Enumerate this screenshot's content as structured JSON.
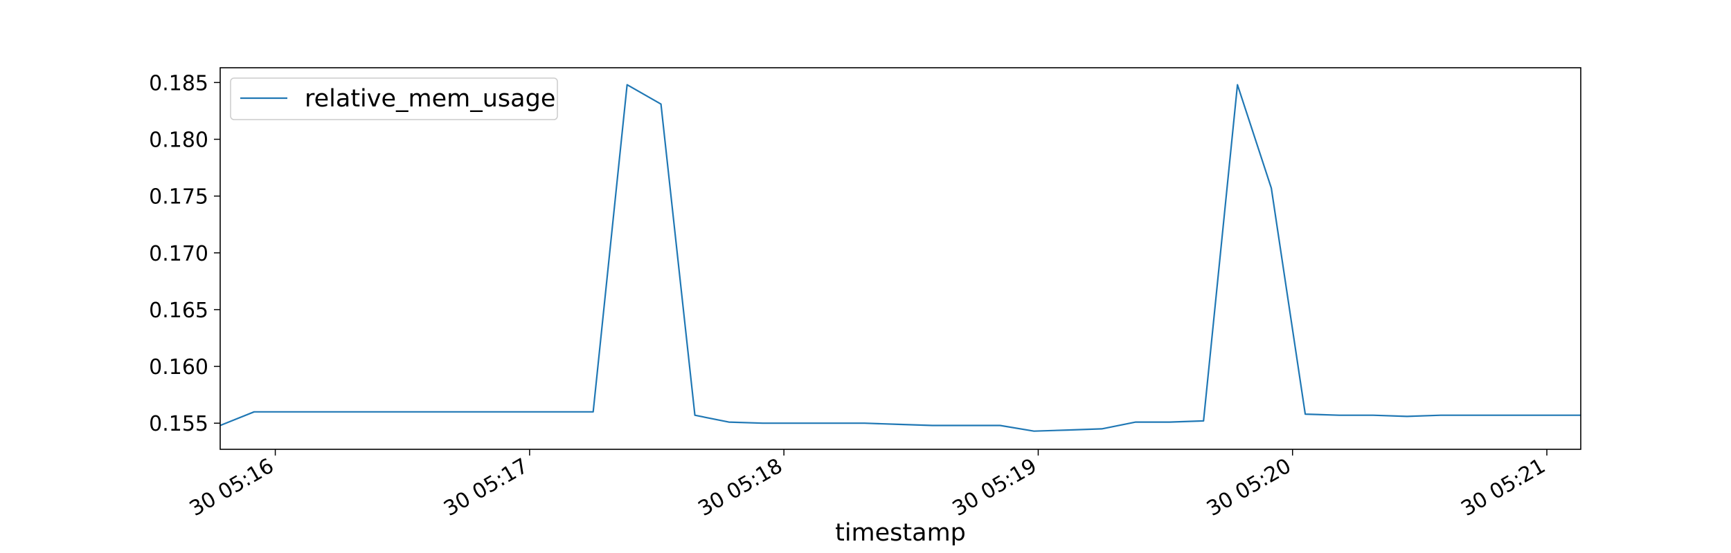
{
  "chart_data": {
    "type": "line",
    "xlabel": "timestamp",
    "ylabel": "",
    "x_tick_labels": [
      "30 05:16",
      "30 05:17",
      "30 05:18",
      "30 05:19",
      "30 05:20",
      "30 05:21"
    ],
    "y_tick_labels": [
      "0.155",
      "0.160",
      "0.165",
      "0.170",
      "0.175",
      "0.180",
      "0.185"
    ],
    "y_ticks": [
      0.155,
      0.16,
      0.165,
      0.17,
      0.175,
      0.18,
      0.185
    ],
    "xlim": [
      "05:15:47",
      "05:21:08"
    ],
    "ylim": [
      0.1527,
      0.1863
    ],
    "grid": false,
    "legend_position": "upper-left",
    "series": [
      {
        "name": "relative_mem_usage",
        "color": "#1f77b4",
        "x": [
          "05:15:47",
          "05:15:55",
          "05:16:03",
          "05:16:11",
          "05:16:19",
          "05:16:27",
          "05:16:35",
          "05:16:43",
          "05:16:51",
          "05:16:59",
          "05:17:07",
          "05:17:15",
          "05:17:23",
          "05:17:31",
          "05:17:39",
          "05:17:47",
          "05:17:55",
          "05:18:03",
          "05:18:11",
          "05:18:19",
          "05:18:27",
          "05:18:35",
          "05:18:43",
          "05:18:51",
          "05:18:59",
          "05:19:07",
          "05:19:15",
          "05:19:23",
          "05:19:31",
          "05:19:39",
          "05:19:47",
          "05:19:55",
          "05:20:03",
          "05:20:11",
          "05:20:19",
          "05:20:27",
          "05:20:35",
          "05:20:43",
          "05:20:51",
          "05:20:59",
          "05:21:08"
        ],
        "y": [
          0.1548,
          0.156,
          0.156,
          0.156,
          0.156,
          0.156,
          0.156,
          0.156,
          0.156,
          0.156,
          0.156,
          0.156,
          0.1848,
          0.1831,
          0.1557,
          0.1551,
          0.155,
          0.155,
          0.155,
          0.155,
          0.1549,
          0.1548,
          0.1548,
          0.1548,
          0.1543,
          0.1544,
          0.1545,
          0.1551,
          0.1551,
          0.1552,
          0.1848,
          0.1757,
          0.1558,
          0.1557,
          0.1557,
          0.1556,
          0.1557,
          0.1557,
          0.1557,
          0.1557,
          0.1557
        ]
      }
    ]
  }
}
